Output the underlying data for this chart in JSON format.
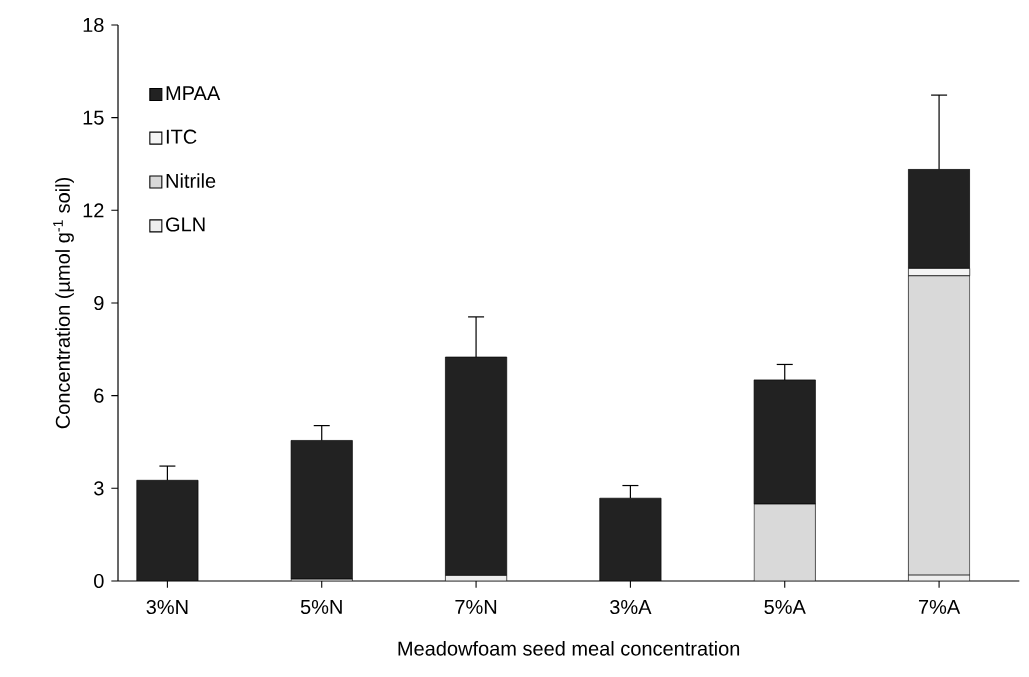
{
  "chart_data": {
    "type": "bar",
    "stacked": true,
    "xlabel": "Meadowfoam seed meal concentration",
    "ylabel": "Concentration (µmol g$^{-1}$ soil)",
    "categories": [
      "3%N",
      "5%N",
      "7%N",
      "3%A",
      "5%A",
      "7%A"
    ],
    "series": [
      {
        "name": "GLN",
        "color": "#eeeeee",
        "values": [
          0,
          0.06,
          0.18,
          0,
          0,
          0.19
        ]
      },
      {
        "name": "Nitrile",
        "color": "#d9d9d9",
        "values": [
          0,
          0,
          0,
          0,
          2.49,
          9.69
        ]
      },
      {
        "name": "ITC",
        "color": "#f4f4f4",
        "values": [
          0,
          0,
          0,
          0,
          0,
          0.24
        ]
      },
      {
        "name": "MPAA",
        "color": "#222222",
        "values": [
          3.26,
          4.49,
          7.07,
          2.68,
          4.02,
          3.21
        ],
        "errors": [
          0.46,
          0.48,
          1.3,
          0.41,
          0.5,
          2.4
        ]
      }
    ],
    "ylim": [
      0,
      18
    ],
    "yticks": [
      0,
      3,
      6,
      9,
      12,
      15,
      18
    ],
    "grid": false,
    "legend": "top left"
  }
}
